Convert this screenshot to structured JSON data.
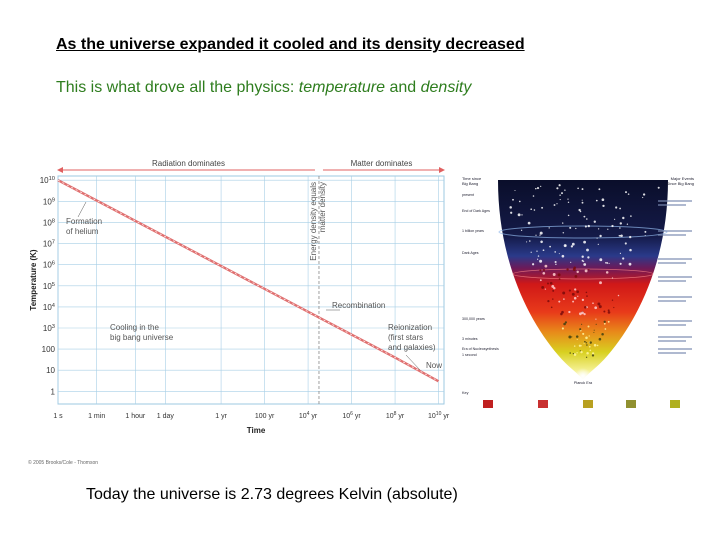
{
  "heading": "As the universe expanded it cooled and its density decreased",
  "subheading": {
    "prefix": "This is what drove all the physics: ",
    "term1": "temperature",
    "joiner": " and ",
    "term2": "density"
  },
  "footer": "Today the universe is 2.73 degrees Kelvin (absolute)",
  "credit": "© 2005 Brooks/Cole - Thomson",
  "chart_data": {
    "type": "line",
    "xlabel": "Time",
    "ylabel": "Temperature (K)",
    "x_tick_labels": [
      "1 s",
      "1 min",
      "1 hour",
      "1 day",
      "1 yr",
      "100 yr",
      "10^4 yr",
      "10^6 yr",
      "10^8 yr",
      "10^10 yr"
    ],
    "x_tick_seconds": [
      1,
      60,
      3600,
      86400,
      31536000,
      3153600000,
      315360000000,
      31536000000000,
      3153600000000000,
      315360000000000000
    ],
    "y_tick_labels": [
      "1",
      "10",
      "100",
      "10^3",
      "10^4",
      "10^5",
      "10^6",
      "10^7",
      "10^8",
      "10^9",
      "10^10"
    ],
    "y_log_scale": true,
    "ylim": [
      1,
      10000000000
    ],
    "series": [
      {
        "x_seconds": [
          1,
          3153600000000000,
          315360000000000000
        ],
        "y_kelvin": [
          10000000000,
          40,
          3
        ]
      }
    ],
    "eras": [
      {
        "label": "Radiation dominates"
      },
      {
        "label": "Matter dominates"
      }
    ],
    "transition_label": "Energy density equals matter density",
    "annotations": [
      {
        "lines": [
          "Formation",
          "of helium"
        ]
      },
      {
        "lines": [
          "Cooling in the",
          "big bang universe"
        ]
      },
      {
        "lines": [
          "Recombination"
        ]
      },
      {
        "lines": [
          "Reionization",
          "(first stars",
          "and galaxies)"
        ]
      },
      {
        "lines": [
          "Now"
        ]
      }
    ],
    "colors": {
      "line": "#e07070",
      "grid": "#a8cfe6",
      "arrow": "#e06060"
    }
  },
  "cosmos_figure": {
    "top_left": [
      "Time since",
      "Big Bang"
    ],
    "top_right": [
      "Major Events",
      "Since Big Bang"
    ],
    "left_stages": [
      "present",
      "End of Dark Ages",
      "1 billion years",
      "Dark Ages",
      "300,000 years",
      "3 minutes",
      "Era of Nucleosynthesis",
      "1 second"
    ],
    "bottom_label": "Planck Era",
    "key_label": "Key"
  }
}
